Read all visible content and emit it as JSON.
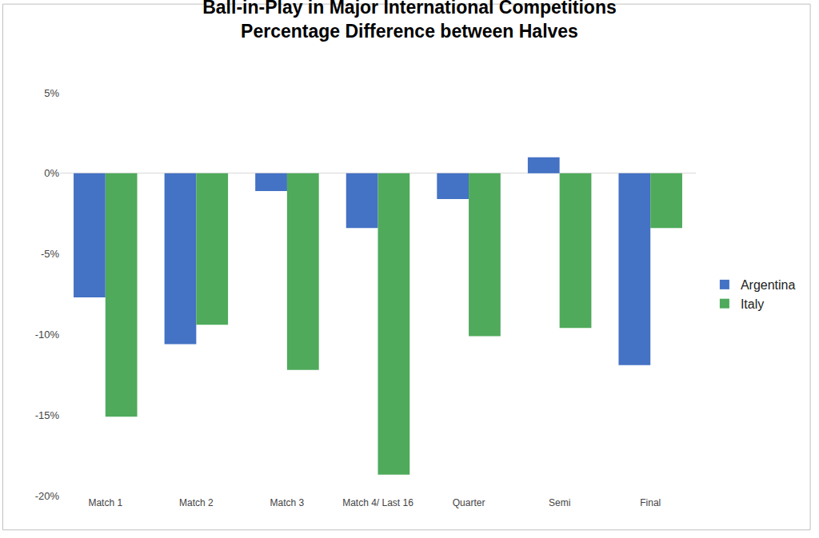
{
  "chart_data": {
    "type": "bar",
    "title": "Ball-in-Play in Major International Competitions\nPercentage Difference between Halves",
    "categories": [
      "Match 1",
      "Match 2",
      "Match 3",
      "Match 4/ Last 16",
      "Quarter",
      "Semi",
      "Final"
    ],
    "series": [
      {
        "name": "Argentina",
        "color": "#4472c4",
        "values": [
          -7.7,
          -10.6,
          -1.1,
          -3.4,
          -1.6,
          1.0,
          -11.9
        ]
      },
      {
        "name": "Italy",
        "color": "#4faa5b",
        "values": [
          -15.1,
          -9.4,
          -12.2,
          -18.7,
          -10.1,
          -9.6,
          -3.4
        ]
      }
    ],
    "ylim": [
      -20,
      5
    ],
    "yticks": [
      {
        "value": -20,
        "label": "-20%"
      },
      {
        "value": -15,
        "label": "-15%"
      },
      {
        "value": -10,
        "label": "-10%"
      },
      {
        "value": -5,
        "label": "-5%"
      },
      {
        "value": 0,
        "label": "0%"
      },
      {
        "value": 5,
        "label": "5%"
      }
    ],
    "grid": false,
    "legend": "right"
  }
}
